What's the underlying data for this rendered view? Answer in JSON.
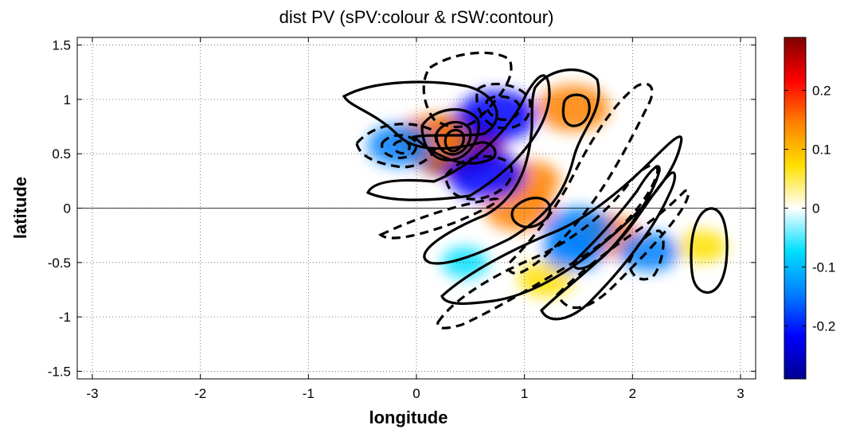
{
  "chart_data": {
    "type": "heatmap",
    "title": "dist PV (sPV:colour & rSW:contour)",
    "xlabel": "longitude",
    "ylabel": "latitude",
    "xlim": [
      -3.14,
      3.14
    ],
    "ylim": [
      -1.57,
      1.57
    ],
    "x_ticks": [
      -3,
      -2,
      -1,
      0,
      1,
      2,
      3
    ],
    "y_ticks": [
      -1.5,
      -1,
      -0.5,
      0,
      0.5,
      1,
      1.5
    ],
    "x_tick_labels": [
      "-3",
      "-2",
      "-1",
      "0",
      "1",
      "2",
      "3"
    ],
    "y_tick_labels": [
      "-1.5",
      "-1",
      "-0.5",
      "0",
      "0.5",
      "1",
      "1.5"
    ],
    "grid": true,
    "colorbar": {
      "range": [
        -0.29,
        0.29
      ],
      "ticks": [
        -0.2,
        -0.1,
        0,
        0.1,
        0.2
      ],
      "tick_labels": [
        "-0.2",
        "-0.1",
        "0",
        "0.1",
        "0.2"
      ],
      "colormap": [
        "#00008f",
        "#0000ff",
        "#0080ff",
        "#00e0ff",
        "#ffffff",
        "#ffe000",
        "#ff8000",
        "#ff0000",
        "#800000"
      ]
    },
    "colour_field": [
      {
        "x": 0.35,
        "y": 0.58,
        "value": 0.28
      },
      {
        "x": 0.12,
        "y": 0.65,
        "value": 0.15
      },
      {
        "x": 1.45,
        "y": 0.92,
        "value": 0.17
      },
      {
        "x": 1.05,
        "y": 0.25,
        "value": 0.12
      },
      {
        "x": 0.95,
        "y": 0.0,
        "value": 0.16
      },
      {
        "x": 1.75,
        "y": -0.25,
        "value": 0.15
      },
      {
        "x": 1.2,
        "y": -0.65,
        "value": 0.1
      },
      {
        "x": 2.65,
        "y": -0.35,
        "value": 0.07
      },
      {
        "x": 0.75,
        "y": 0.85,
        "value": -0.2
      },
      {
        "x": -0.15,
        "y": 0.58,
        "value": -0.14
      },
      {
        "x": 0.65,
        "y": 0.3,
        "value": -0.19
      },
      {
        "x": 1.5,
        "y": -0.2,
        "value": -0.16
      },
      {
        "x": 1.45,
        "y": -0.4,
        "value": -0.12
      },
      {
        "x": 2.15,
        "y": -0.4,
        "value": -0.12
      },
      {
        "x": 0.45,
        "y": -0.5,
        "value": -0.06
      },
      {
        "x": -2.55,
        "y": 0.0,
        "value": 0.03
      },
      {
        "x": -1.5,
        "y": -0.95,
        "value": 0.03
      }
    ],
    "contour_styles": {
      "positive": "solid",
      "negative": "dashed"
    }
  }
}
